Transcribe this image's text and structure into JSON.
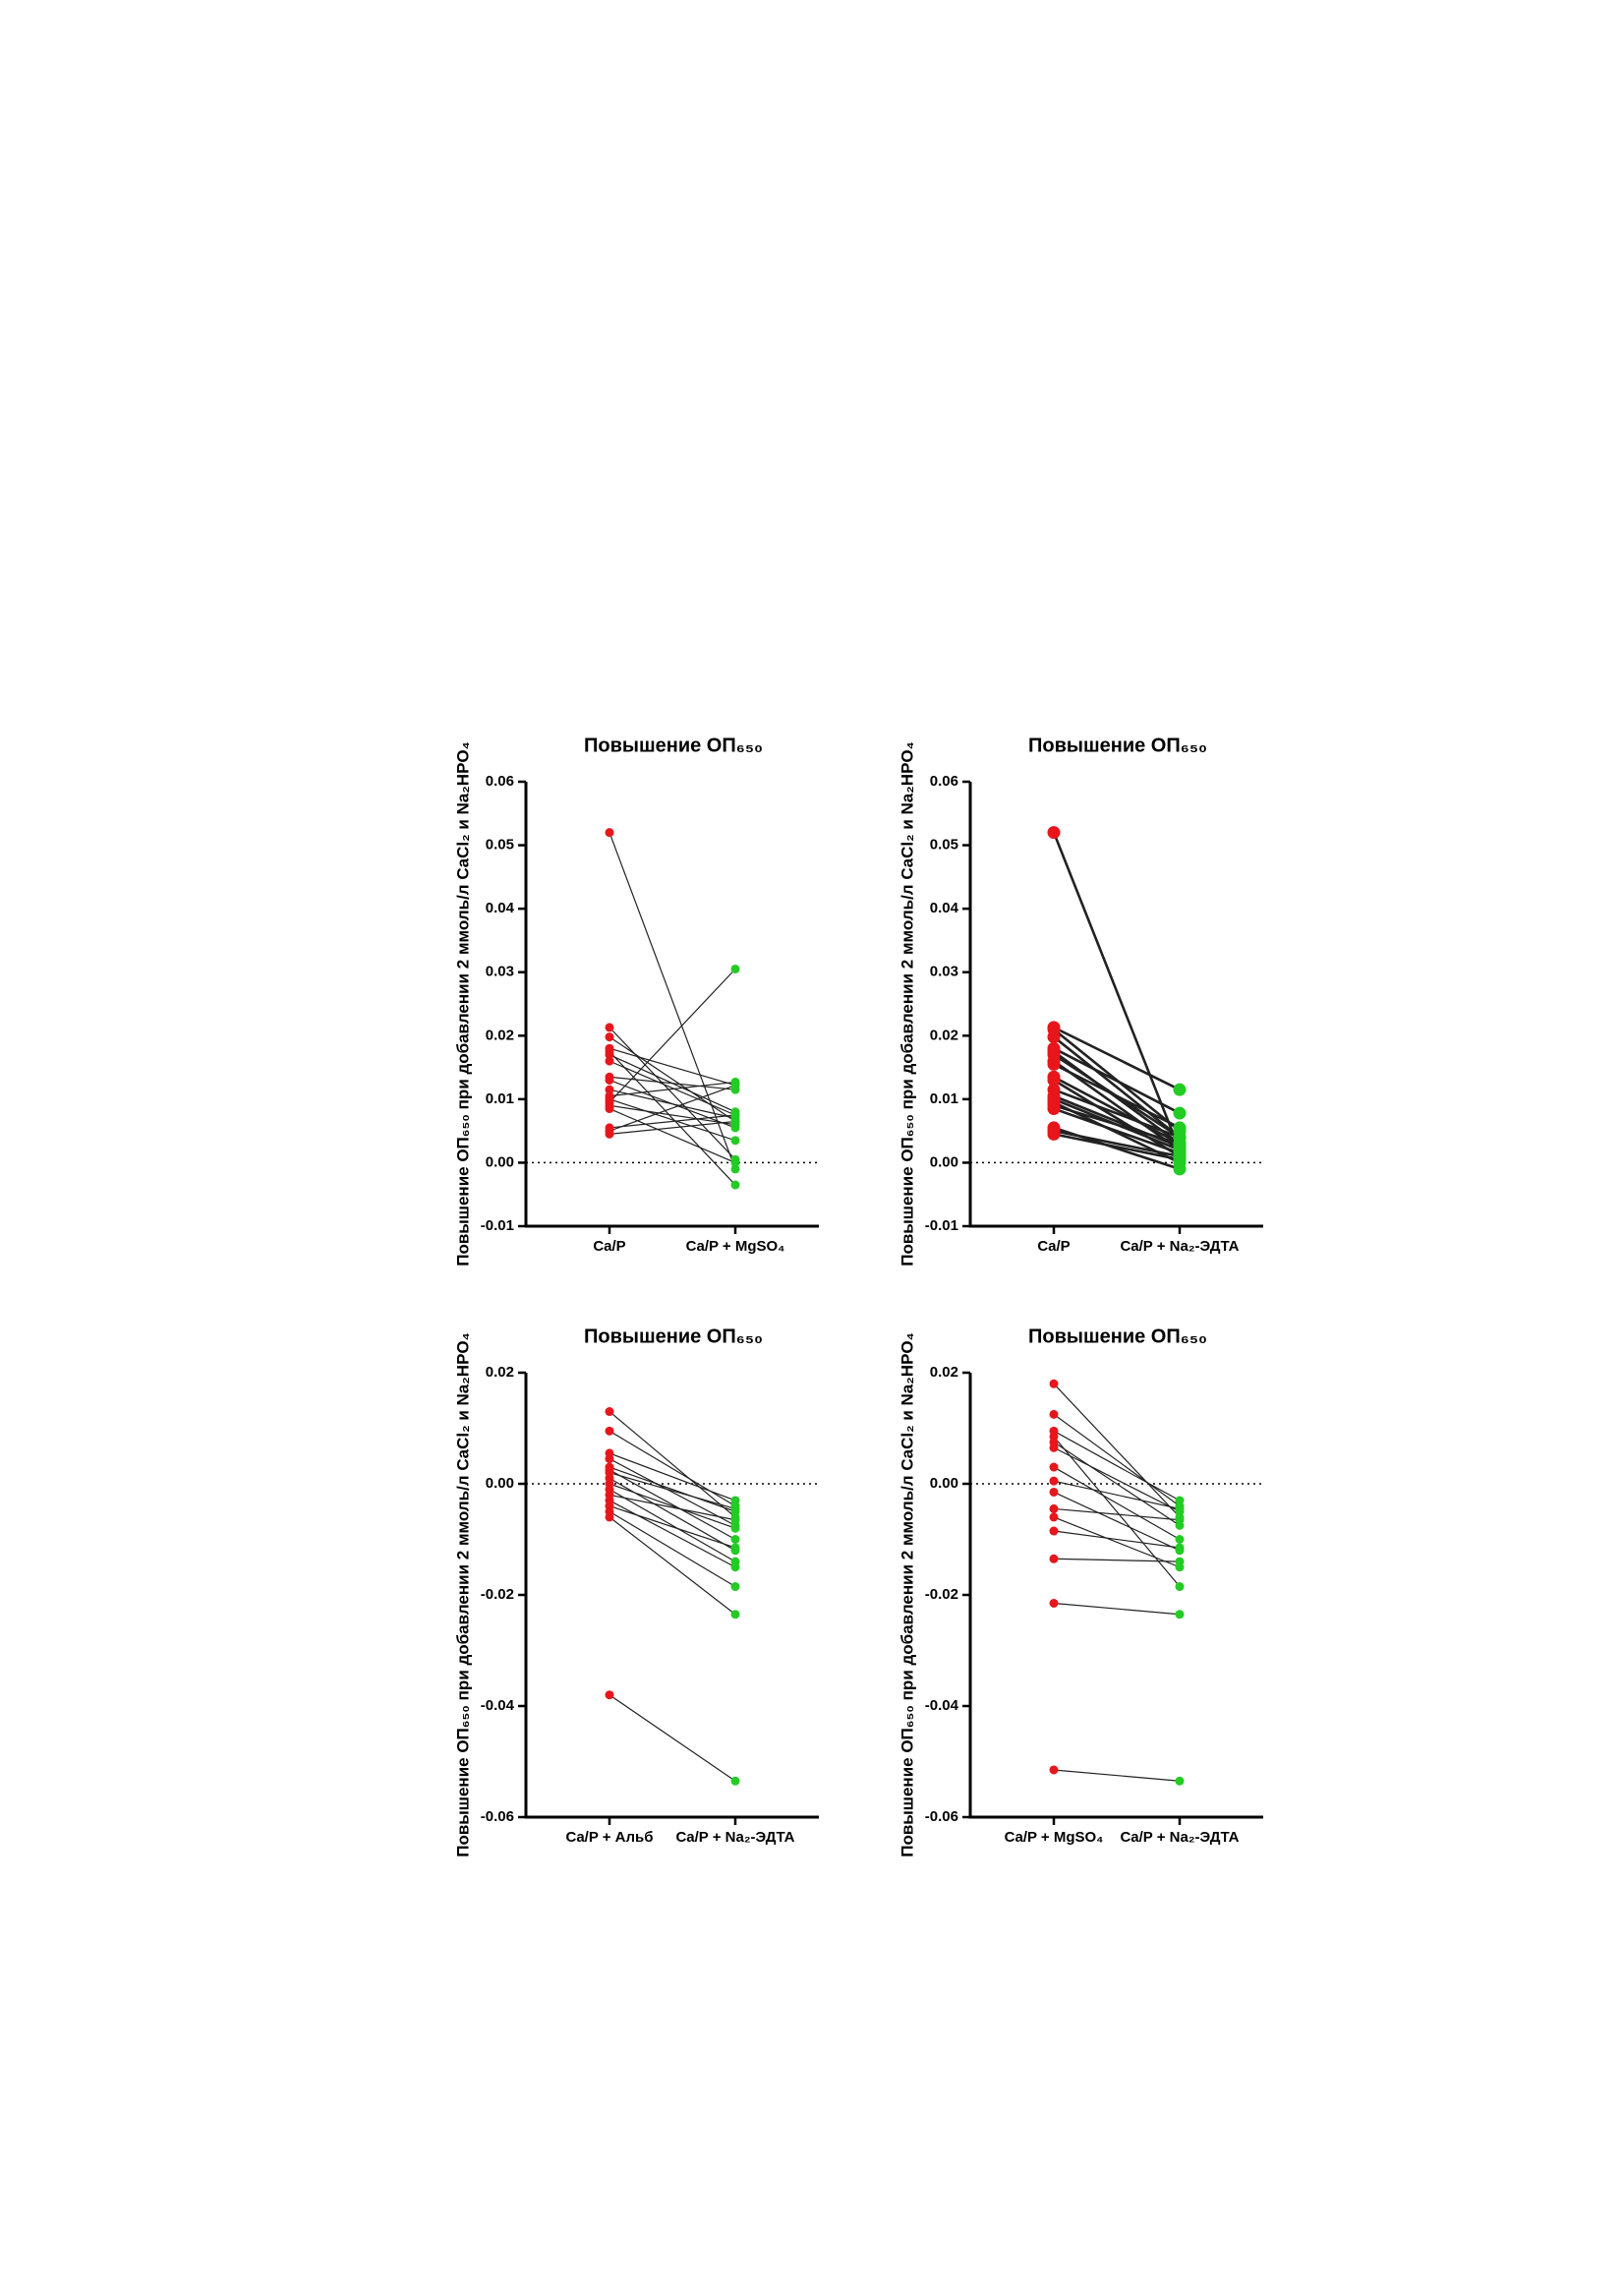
{
  "chart_data": [
    {
      "type": "paired",
      "title": "Повышение ОП₆₅₀",
      "y_label": "Повышение ОП₆₅₀ при добавлении 2 ммоль/л CaCl₂ и Na₂HPO₄",
      "categories": [
        "Ca/P",
        "Ca/P + MgSO₄"
      ],
      "colors": [
        "#e8161b",
        "#22cc22"
      ],
      "values": [
        [
          0.052,
          0.0213,
          0.0198,
          0.018,
          0.0175,
          0.017,
          0.016,
          0.0135,
          0.013,
          0.0115,
          0.0105,
          0.01,
          0.0095,
          0.009,
          0.0085,
          0.0055,
          0.005,
          0.0045
        ],
        [
          -0.001,
          0.0005,
          0.0065,
          0.0122,
          -0.0035,
          0.008,
          0.0075,
          0.0115,
          0.0055,
          0.007,
          0.0127,
          0.0035,
          0.0305,
          0.006,
          0.0,
          0.0075,
          0.0122,
          0.0065
        ]
      ],
      "ylim": [
        -0.01,
        0.06
      ],
      "yticks": [
        -0.01,
        {
          "value": 0,
          "label": "0.00"
        },
        0.01,
        0.02,
        0.03,
        0.04,
        0.05,
        0.06
      ],
      "hline": 0
    },
    {
      "type": "paired",
      "title": "Повышение ОП₆₅₀",
      "y_label": "Повышение ОП₆₅₀ при добавлении 2 ммоль/л CaCl₂ и Na₂HPO₄",
      "categories": [
        "Ca/P",
        "Ca/P + Na₂-ЭДТА"
      ],
      "colors": [
        "#e8161b",
        "#22cc22"
      ],
      "values": [
        [
          0.052,
          0.0213,
          0.021,
          0.0198,
          0.018,
          0.0175,
          0.017,
          0.016,
          0.0155,
          0.0135,
          0.013,
          0.0115,
          0.0105,
          0.01,
          0.0095,
          0.009,
          0.0085,
          0.0055,
          0.005,
          0.0045
        ],
        [
          0.002,
          0.0115,
          0.005,
          0.004,
          0.0078,
          0.003,
          0.004,
          0.002,
          0.0055,
          0.003,
          0.001,
          0.004,
          0.0025,
          0.002,
          0.0,
          0.003,
          0.0015,
          -0.001,
          0.001,
          0.0005
        ]
      ],
      "ylim": [
        -0.01,
        0.06
      ],
      "yticks": [
        -0.01,
        {
          "value": 0,
          "label": "0.00"
        },
        0.01,
        0.02,
        0.03,
        0.04,
        0.05,
        0.06
      ],
      "hline": 0
    },
    {
      "type": "paired",
      "title": "Повышение ОП₆₅₀",
      "y_label": "Повышение ОП₆₅₀ при добавлении 2 ммоль/л CaCl₂ и Na₂HPO₄",
      "categories": [
        "Ca/P + Альб",
        "Ca/P + Na₂-ЭДТА"
      ],
      "colors": [
        "#e8161b",
        "#22cc22"
      ],
      "values": [
        [
          0.013,
          0.0095,
          0.0055,
          0.0045,
          0.003,
          0.0025,
          0.002,
          0.001,
          0.0,
          -0.001,
          -0.002,
          -0.003,
          -0.004,
          -0.005,
          -0.006,
          -0.038
        ],
        [
          -0.006,
          -0.004,
          -0.003,
          -0.0075,
          -0.005,
          -0.01,
          -0.0045,
          -0.012,
          -0.008,
          -0.014,
          -0.0065,
          -0.015,
          -0.0115,
          -0.0185,
          -0.0235,
          -0.0535
        ]
      ],
      "ylim": [
        -0.06,
        0.02
      ],
      "yticks": [
        -0.06,
        -0.04,
        -0.02,
        {
          "value": 0,
          "label": "0.00"
        },
        0.02
      ],
      "hline": 0
    },
    {
      "type": "paired",
      "title": "Повышение ОП₆₅₀",
      "y_label": "Повышение ОП₆₅₀ при добавлении 2 ммоль/л CaCl₂ и Na₂HPO₄",
      "categories": [
        "Ca/P + MgSO₄",
        "Ca/P + Na₂-ЭДТА"
      ],
      "colors": [
        "#e8161b",
        "#22cc22"
      ],
      "values": [
        [
          0.018,
          0.0125,
          0.0095,
          0.0085,
          0.0075,
          0.0065,
          0.003,
          0.0005,
          -0.0015,
          -0.0045,
          -0.006,
          -0.0085,
          -0.0135,
          -0.0215,
          -0.0515
        ],
        [
          -0.006,
          -0.004,
          -0.003,
          -0.0185,
          -0.0075,
          -0.005,
          -0.01,
          -0.0045,
          -0.012,
          -0.0065,
          -0.015,
          -0.0115,
          -0.014,
          -0.0235,
          -0.0535
        ]
      ],
      "ylim": [
        -0.06,
        0.02
      ],
      "yticks": [
        -0.06,
        -0.04,
        -0.02,
        {
          "value": 0,
          "label": "0.00"
        },
        0.02
      ],
      "hline": 0
    }
  ]
}
